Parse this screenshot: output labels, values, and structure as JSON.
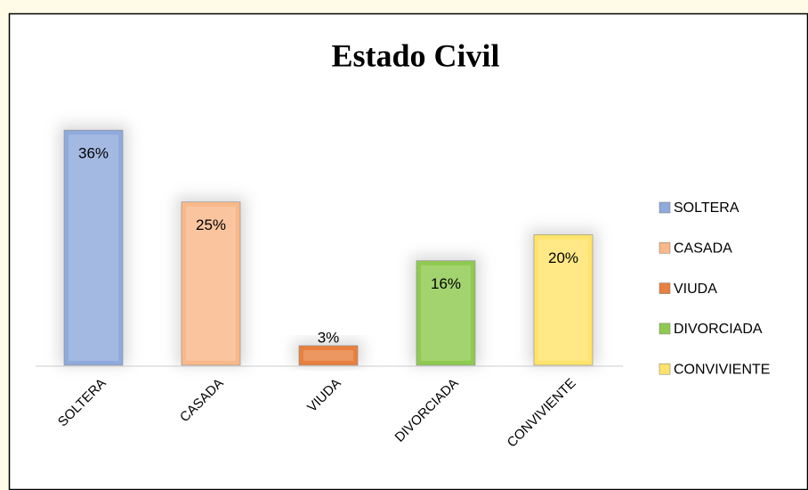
{
  "chart_data": {
    "type": "bar",
    "title": "Estado Civil",
    "categories": [
      "SOLTERA",
      "CASADA",
      "VIUDA",
      "DIVORCIADA",
      "CONVIVIENTE"
    ],
    "values": [
      36,
      25,
      3,
      16,
      20
    ],
    "value_labels": [
      "36%",
      "25%",
      "3%",
      "16%",
      "20%"
    ],
    "colors": [
      "#8faadc",
      "#f8b889",
      "#e8803f",
      "#8fca50",
      "#ffe36b"
    ],
    "legend": "right"
  }
}
